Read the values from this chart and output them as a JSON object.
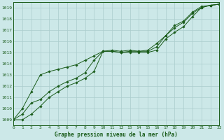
{
  "title": "Graphe pression niveau de la mer (hPa)",
  "bg_color": "#cce8e8",
  "grid_color": "#aacccc",
  "line_color": "#1a5c1a",
  "marker_color": "#1a5c1a",
  "xlim": [
    0,
    23
  ],
  "ylim": [
    1008.5,
    1019.5
  ],
  "xticks": [
    0,
    1,
    2,
    3,
    4,
    5,
    6,
    7,
    8,
    9,
    10,
    11,
    12,
    13,
    14,
    15,
    16,
    17,
    18,
    19,
    20,
    21,
    22,
    23
  ],
  "yticks": [
    1009,
    1010,
    1011,
    1012,
    1013,
    1014,
    1015,
    1016,
    1017,
    1018,
    1019
  ],
  "series": [
    [
      1009.0,
      1009.0,
      1009.5,
      1010.2,
      1011.0,
      1011.5,
      1012.0,
      1012.3,
      1012.7,
      1013.3,
      1015.1,
      1015.1,
      1015.0,
      1015.0,
      1015.0,
      1015.0,
      1015.2,
      1016.2,
      1016.8,
      1017.3,
      1018.2,
      1019.0,
      1019.2,
      1019.3
    ],
    [
      1009.0,
      1009.5,
      1010.5,
      1010.8,
      1011.5,
      1012.0,
      1012.4,
      1012.7,
      1013.2,
      1014.3,
      1015.1,
      1015.2,
      1015.1,
      1015.2,
      1015.1,
      1015.1,
      1015.5,
      1016.5,
      1017.2,
      1017.7,
      1018.5,
      1019.0,
      1019.2,
      1019.3
    ],
    [
      1009.0,
      1010.0,
      1011.5,
      1013.0,
      1013.3,
      1013.5,
      1013.7,
      1013.9,
      1014.3,
      1014.7,
      1015.1,
      1015.1,
      1015.0,
      1015.1,
      1015.1,
      1015.2,
      1015.8,
      1016.5,
      1017.4,
      1017.8,
      1018.6,
      1019.1,
      1019.2,
      1019.3
    ]
  ]
}
